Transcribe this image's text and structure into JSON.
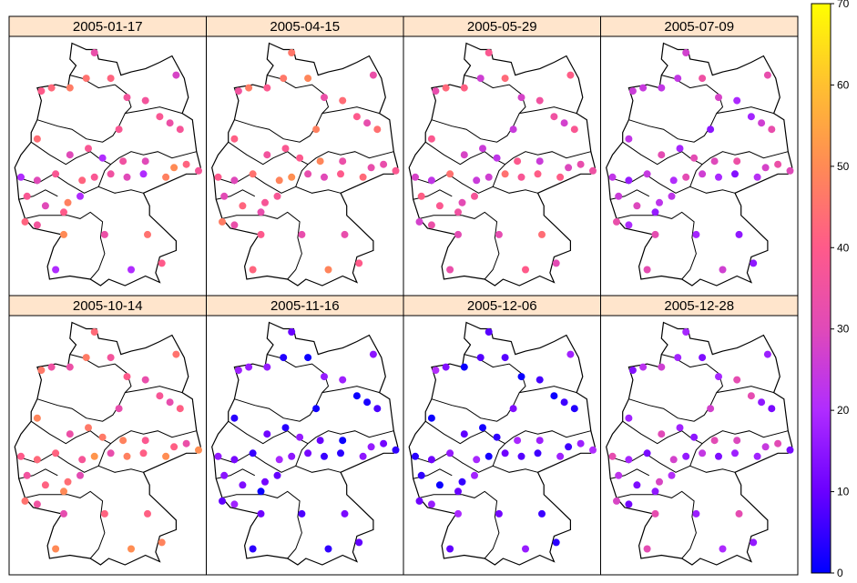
{
  "chart_data": {
    "type": "scatter",
    "layout": "trellis 4 columns x 2 rows, small multiples of station maps",
    "panel_strip_color": "#ffe5cc",
    "panels": [
      {
        "title": "2005-01-17",
        "level": "mixed",
        "values": [
          {
            "lon": 9.8,
            "lat": 54.7,
            "value": 33
          },
          {
            "lon": 7.2,
            "lat": 53.5,
            "value": 40
          },
          {
            "lon": 7.7,
            "lat": 53.6,
            "value": 43
          },
          {
            "lon": 8.6,
            "lat": 53.6,
            "value": 47
          },
          {
            "lon": 9.4,
            "lat": 53.9,
            "value": 45
          },
          {
            "lon": 10.6,
            "lat": 53.9,
            "value": 42
          },
          {
            "lon": 13.8,
            "lat": 54.0,
            "value": 28
          },
          {
            "lon": 12.3,
            "lat": 53.2,
            "value": 36
          },
          {
            "lon": 11.4,
            "lat": 53.3,
            "value": 36
          },
          {
            "lon": 13.0,
            "lat": 52.7,
            "value": 38
          },
          {
            "lon": 13.5,
            "lat": 52.5,
            "value": 34
          },
          {
            "lon": 14.0,
            "lat": 52.3,
            "value": 37
          },
          {
            "lon": 11.0,
            "lat": 52.3,
            "value": 38
          },
          {
            "lon": 7.0,
            "lat": 52.0,
            "value": 44
          },
          {
            "lon": 9.5,
            "lat": 51.7,
            "value": 38
          },
          {
            "lon": 8.6,
            "lat": 51.5,
            "value": 30
          },
          {
            "lon": 10.2,
            "lat": 51.4,
            "value": 20
          },
          {
            "lon": 11.2,
            "lat": 51.3,
            "value": 35
          },
          {
            "lon": 12.3,
            "lat": 51.3,
            "value": 30
          },
          {
            "lon": 13.7,
            "lat": 51.1,
            "value": 50
          },
          {
            "lon": 14.3,
            "lat": 51.2,
            "value": 42
          },
          {
            "lon": 14.9,
            "lat": 51.0,
            "value": 37
          },
          {
            "lon": 6.2,
            "lat": 50.8,
            "value": 20
          },
          {
            "lon": 7.0,
            "lat": 50.7,
            "value": 30
          },
          {
            "lon": 7.9,
            "lat": 50.9,
            "value": 38
          },
          {
            "lon": 9.2,
            "lat": 50.7,
            "value": 42
          },
          {
            "lon": 9.8,
            "lat": 50.8,
            "value": 38
          },
          {
            "lon": 10.6,
            "lat": 50.9,
            "value": 35
          },
          {
            "lon": 11.4,
            "lat": 50.8,
            "value": 30
          },
          {
            "lon": 12.2,
            "lat": 50.9,
            "value": 20
          },
          {
            "lon": 13.3,
            "lat": 50.8,
            "value": 48
          },
          {
            "lon": 6.5,
            "lat": 50.2,
            "value": 38
          },
          {
            "lon": 7.4,
            "lat": 49.9,
            "value": 30
          },
          {
            "lon": 8.5,
            "lat": 50.0,
            "value": 48
          },
          {
            "lon": 8.3,
            "lat": 49.7,
            "value": 40
          },
          {
            "lon": 6.4,
            "lat": 49.4,
            "value": 42
          },
          {
            "lon": 7.0,
            "lat": 49.3,
            "value": 36
          },
          {
            "lon": 8.3,
            "lat": 49.0,
            "value": 50
          },
          {
            "lon": 10.3,
            "lat": 49.0,
            "value": 34
          },
          {
            "lon": 12.4,
            "lat": 49.0,
            "value": 45
          },
          {
            "lon": 11.6,
            "lat": 47.9,
            "value": 20
          },
          {
            "lon": 13.1,
            "lat": 48.1,
            "value": 40
          },
          {
            "lon": 7.9,
            "lat": 47.9,
            "value": 20
          },
          {
            "lon": 9.1,
            "lat": 50.2,
            "value": 20
          }
        ]
      },
      {
        "title": "2005-04-15",
        "level": "high",
        "values": []
      },
      {
        "title": "2005-05-29",
        "level": "mixed",
        "values": []
      },
      {
        "title": "2005-07-09",
        "level": "lower",
        "values": []
      },
      {
        "title": "2005-10-14",
        "level": "highest",
        "values": []
      },
      {
        "title": "2005-11-16",
        "level": "low",
        "values": []
      },
      {
        "title": "2005-12-06",
        "level": "low",
        "values": []
      },
      {
        "title": "2005-12-28",
        "level": "lowish",
        "values": []
      }
    ],
    "colorbar": {
      "min": 0,
      "max": 70,
      "ticks": [
        "0",
        "10",
        "20",
        "30",
        "40",
        "50",
        "60",
        "70"
      ],
      "colors": [
        "#0000ff",
        "#6a00ff",
        "#b02cff",
        "#e04ab8",
        "#ff5a8a",
        "#ff8a55",
        "#ffc030",
        "#ffff00"
      ]
    }
  }
}
